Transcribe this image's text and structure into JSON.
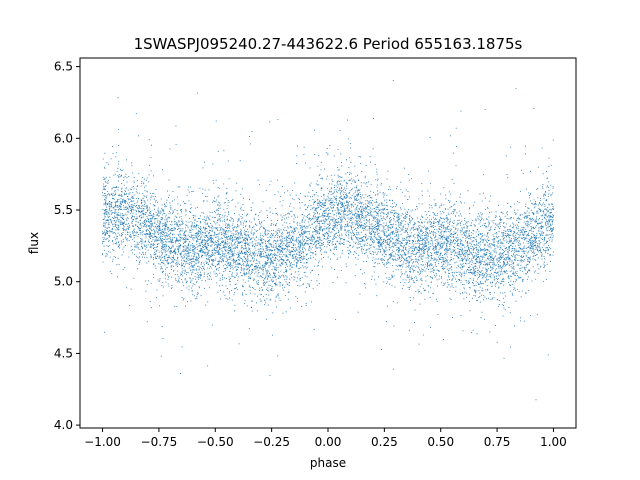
{
  "chart_data": {
    "type": "scatter",
    "title": "1SWASPJ095240.27-443622.6 Period 655163.1875s",
    "xlabel": "phase",
    "ylabel": "flux",
    "xlim": [
      -1.1,
      1.1
    ],
    "ylim": [
      3.98,
      6.56
    ],
    "xticks": [
      -1.0,
      -0.75,
      -0.5,
      -0.25,
      0.0,
      0.25,
      0.5,
      0.75,
      1.0
    ],
    "xtick_labels": [
      "−1.00",
      "−0.75",
      "−0.50",
      "−0.25",
      "0.00",
      "0.25",
      "0.50",
      "0.75",
      "1.00"
    ],
    "yticks": [
      4.0,
      4.5,
      5.0,
      5.5,
      6.0,
      6.5
    ],
    "ytick_labels": [
      "4.0",
      "4.5",
      "5.0",
      "5.5",
      "6.0",
      "6.5"
    ],
    "grid": false,
    "legend": "none",
    "marker_color": "#1f77b4",
    "phase_range": [
      -1.0,
      1.0
    ],
    "light_curve": {
      "phase": [
        -1.0,
        -0.9,
        -0.8,
        -0.7,
        -0.6,
        -0.5,
        -0.4,
        -0.3,
        -0.2,
        -0.1,
        0.0,
        0.1,
        0.2,
        0.3,
        0.4,
        0.5,
        0.6,
        0.7,
        0.8,
        0.9,
        1.0
      ],
      "mean_flux": [
        5.45,
        5.5,
        5.38,
        5.28,
        5.22,
        5.28,
        5.22,
        5.18,
        5.2,
        5.3,
        5.45,
        5.5,
        5.38,
        5.28,
        5.22,
        5.28,
        5.22,
        5.18,
        5.2,
        5.3,
        5.45
      ],
      "scatter": 0.15
    },
    "flux_range": [
      4.1,
      6.48
    ]
  }
}
